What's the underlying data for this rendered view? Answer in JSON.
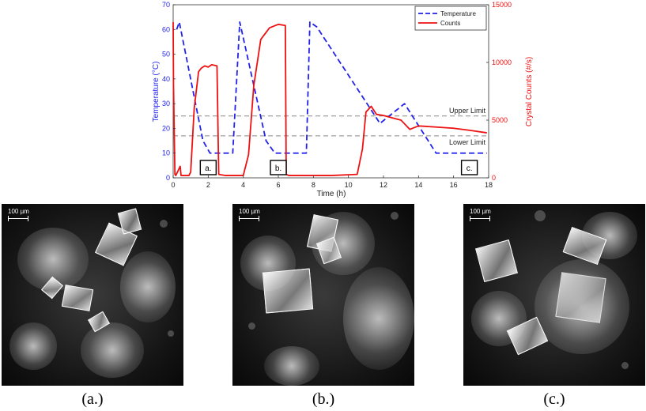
{
  "chart_data": {
    "type": "line",
    "xlabel": "Time (h)",
    "ylabel_left": "Temperature (°C)",
    "ylabel_right": "Crystal Counts (#/s)",
    "xlim": [
      0,
      18
    ],
    "ylim_left": [
      0,
      70
    ],
    "ylim_right": [
      0,
      15000
    ],
    "xticks": [
      0,
      2,
      4,
      6,
      8,
      10,
      12,
      14,
      16,
      18
    ],
    "yticks_left": [
      0,
      10,
      20,
      30,
      40,
      50,
      60,
      70
    ],
    "yticks_right": [
      0,
      5000,
      10000,
      15000
    ],
    "legend": {
      "placement": "top-right",
      "entries": [
        "Temperature",
        "Counts"
      ]
    },
    "series": [
      {
        "name": "Temperature",
        "axis": "left",
        "color": "#2222ee",
        "style": "dashed",
        "x": [
          0.2,
          0.35,
          1.7,
          2.1,
          3.4,
          3.8,
          5.3,
          5.8,
          7.6,
          7.8,
          8.2,
          11.8,
          13.2,
          15.0,
          17.9
        ],
        "y": [
          60,
          63,
          15,
          10,
          10,
          63,
          15,
          10,
          10,
          63,
          61,
          22,
          30,
          10,
          10
        ]
      },
      {
        "name": "Counts",
        "axis": "right",
        "color": "#ee1111",
        "style": "solid",
        "x": [
          0.0,
          0.02,
          0.1,
          0.15,
          0.4,
          0.45,
          0.6,
          0.9,
          1.0,
          1.2,
          1.45,
          1.6,
          1.8,
          2.0,
          2.2,
          2.5,
          2.6,
          3.0,
          4.0,
          4.3,
          4.6,
          5.0,
          5.5,
          6.0,
          6.4,
          6.45,
          6.6,
          9.0,
          10.5,
          10.8,
          11.0,
          11.3,
          11.6,
          12.0,
          12.5,
          13.0,
          13.5,
          14.0,
          15.0,
          16.0,
          17.0,
          17.9
        ],
        "y": [
          13500,
          8000,
          300,
          200,
          1000,
          200,
          200,
          200,
          500,
          6000,
          9200,
          9500,
          9700,
          9600,
          9800,
          9700,
          300,
          200,
          200,
          2000,
          8000,
          12000,
          13000,
          13300,
          13200,
          300,
          200,
          200,
          300,
          2500,
          5700,
          6200,
          5500,
          5400,
          5200,
          5000,
          4200,
          4500,
          4400,
          4300,
          4100,
          3900
        ]
      }
    ],
    "reference_lines": [
      {
        "label": "Upper Limit",
        "y": 25
      },
      {
        "label": "Lower Limit",
        "y": 17
      }
    ],
    "annotations": [
      {
        "label": "a.",
        "x": 2.0
      },
      {
        "label": "b.",
        "x": 6.0
      },
      {
        "label": "c.",
        "x": 16.9
      }
    ]
  },
  "images": [
    {
      "caption": "(a.)",
      "scale_label": "100 µm"
    },
    {
      "caption": "(b.)",
      "scale_label": "100 µm"
    },
    {
      "caption": "(c.)",
      "scale_label": "100 µm"
    }
  ]
}
